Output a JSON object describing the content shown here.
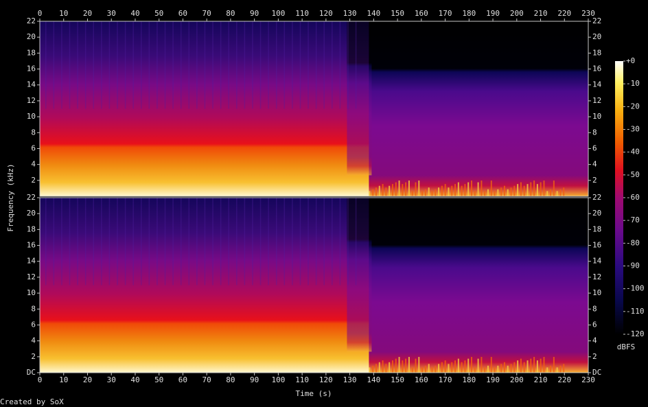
{
  "chart_data": [
    {
      "type": "spectrogram",
      "xlim": [
        0,
        230
      ],
      "xticks": [
        0,
        10,
        20,
        30,
        40,
        50,
        60,
        70,
        80,
        90,
        100,
        110,
        120,
        130,
        140,
        150,
        160,
        170,
        180,
        190,
        200,
        210,
        220,
        230
      ],
      "ylim": [
        0,
        22
      ],
      "yticks": [
        2,
        4,
        6,
        8,
        10,
        12,
        14,
        16,
        18,
        20,
        22
      ]
    },
    {
      "type": "spectrogram",
      "xlim": [
        0,
        230
      ],
      "xticks": [
        0,
        10,
        20,
        30,
        40,
        50,
        60,
        70,
        80,
        90,
        100,
        110,
        120,
        130,
        140,
        150,
        160,
        170,
        180,
        190,
        200,
        210,
        220,
        230
      ],
      "ylim": [
        0,
        22
      ],
      "yticks": [
        {
          "value": 0,
          "label": "DC"
        },
        2,
        4,
        6,
        8,
        10,
        12,
        14,
        16,
        18,
        20,
        22
      ]
    }
  ],
  "x_label": "Time (s)",
  "y_label": "Frequency (kHz)",
  "colorbar": {
    "label": "dBFS",
    "lim": [
      -120,
      0
    ],
    "ticks": [
      {
        "value": 0,
        "label": "+0"
      },
      -10,
      -20,
      -30,
      -40,
      -50,
      -60,
      -70,
      -80,
      -90,
      -100,
      -110,
      -120
    ]
  },
  "footer": "Created by SoX"
}
